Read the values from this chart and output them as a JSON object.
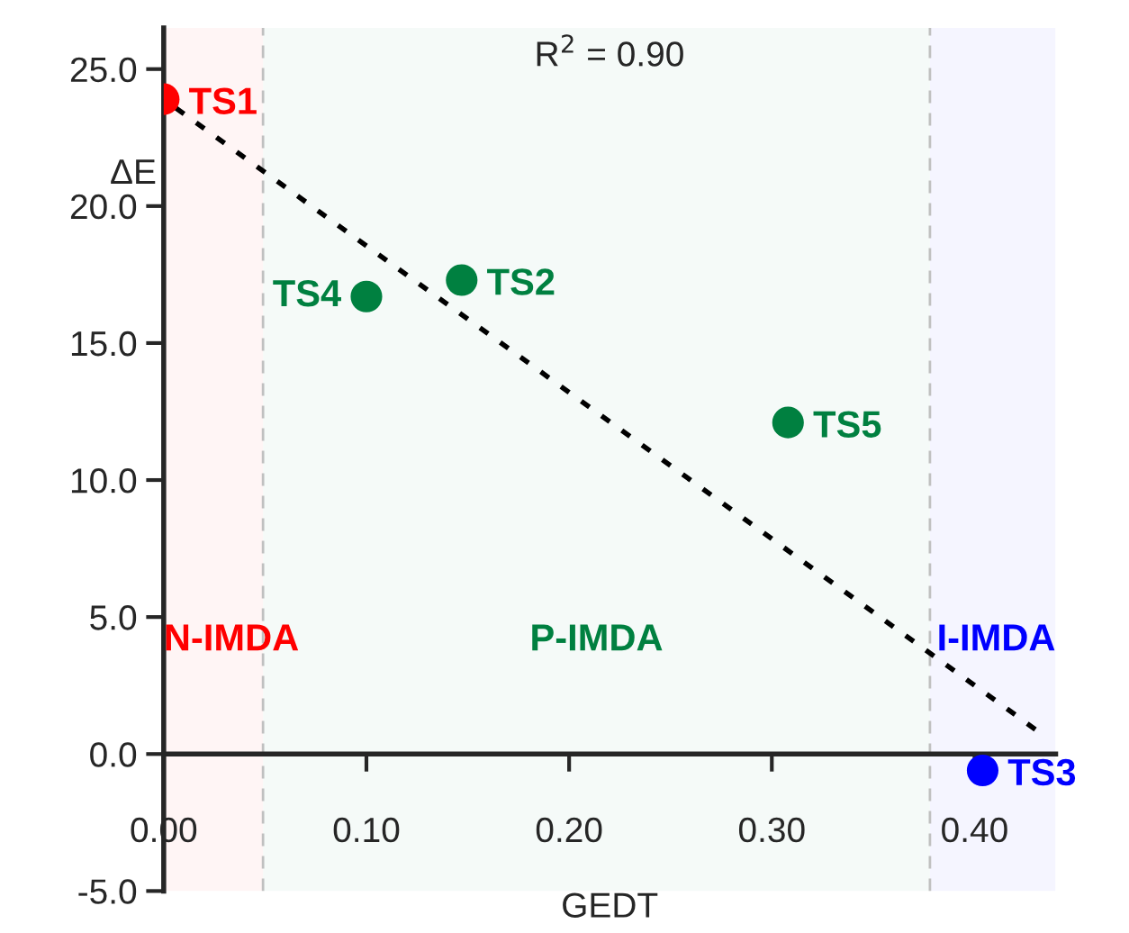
{
  "chart_data": {
    "type": "scatter",
    "xlabel": "GEDT",
    "ylabel": "ΔE",
    "annotations": [
      "R$^{2}$ = 0.90"
    ],
    "xlim": [
      0,
      0.44
    ],
    "xticks": [
      {
        "value": 0,
        "label": "0.00"
      },
      {
        "value": 0.1,
        "label": "0.10"
      },
      {
        "value": 0.2,
        "label": "0.20"
      },
      {
        "value": 0.3,
        "label": "0.30"
      },
      {
        "value": 0.4,
        "label": "0.40"
      }
    ],
    "ylim": [
      -5,
      26.5
    ],
    "yticks": [
      {
        "value": -5,
        "label": "-5.0"
      },
      {
        "value": 0,
        "label": "0.0"
      },
      {
        "value": 5,
        "label": "5.0"
      },
      {
        "value": 10,
        "label": "10.0"
      },
      {
        "value": 15,
        "label": "15.0"
      },
      {
        "value": 20,
        "label": "20.0"
      },
      {
        "value": 25,
        "label": "25.0"
      }
    ],
    "marker": "circle",
    "series": [
      {
        "name": "TS1",
        "color": "#ff0000",
        "x": [
          0.0
        ],
        "values": [
          23.9
        ]
      },
      {
        "name": "TS4",
        "color": "#008040",
        "x": [
          0.1
        ],
        "values": [
          16.7
        ]
      },
      {
        "name": "TS2",
        "color": "#008040",
        "x": [
          0.147
        ],
        "values": [
          17.3
        ]
      },
      {
        "name": "TS5",
        "color": "#008040",
        "x": [
          0.308
        ],
        "values": [
          12.1
        ]
      },
      {
        "name": "TS3",
        "color": "#0000ff",
        "x": [
          0.404
        ],
        "values": [
          -0.6
        ]
      },
      {
        "type": "line",
        "color": "#000000",
        "line_style": "dotted",
        "marker": "none",
        "x": [
          0.0,
          0.43
        ],
        "values": [
          23.9,
          0.9
        ]
      }
    ],
    "ref_lines": [
      {
        "axis": "x",
        "value": 0.049,
        "color": "#c0c0c0",
        "line_style": "dashed"
      },
      {
        "axis": "x",
        "value": 0.378,
        "color": "#c0c0c0",
        "line_style": "dashed"
      }
    ],
    "bands": [
      {
        "axis": "x",
        "from": 0,
        "to": 0.049,
        "label": "N-IMDA",
        "color": "#ff0000"
      },
      {
        "axis": "x",
        "from": 0.049,
        "to": 0.378,
        "label": "P-IMDA",
        "color": "#008040"
      },
      {
        "axis": "x",
        "from": 0.378,
        "to": 0.44,
        "label": "I-IMDA",
        "color": "#0000ff"
      }
    ],
    "grid": false,
    "legend": false
  }
}
